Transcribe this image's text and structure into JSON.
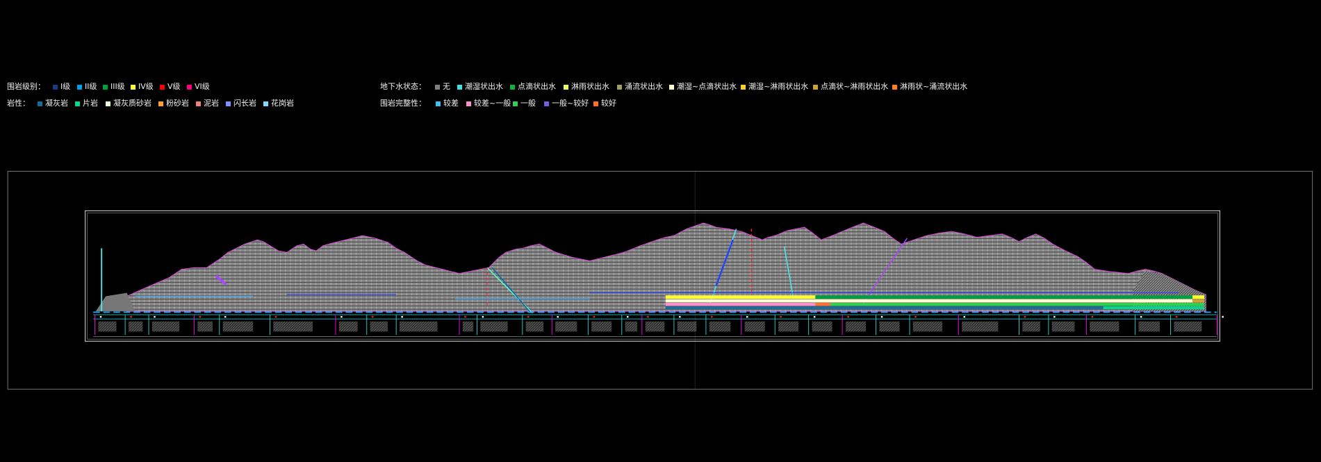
{
  "legend": {
    "grade": {
      "label": "围岩级别：",
      "items": [
        {
          "label": "I级",
          "color": "#1a3a8a"
        },
        {
          "label": "II级",
          "color": "#00a0e9"
        },
        {
          "label": "III级",
          "color": "#00a040"
        },
        {
          "label": "IV级",
          "color": "#ffff33"
        },
        {
          "label": "V级",
          "color": "#ff0000"
        },
        {
          "label": "VI级",
          "color": "#ff0080"
        }
      ]
    },
    "lithology": {
      "label": "岩性：",
      "items": [
        {
          "label": "凝灰岩",
          "color": "#1a6a9a"
        },
        {
          "label": "片岩",
          "color": "#00d890"
        },
        {
          "label": "凝灰质砂岩",
          "color": "#e8ffd8"
        },
        {
          "label": "粉砂岩",
          "color": "#ffa030"
        },
        {
          "label": "泥岩",
          "color": "#f08080"
        },
        {
          "label": "闪长岩",
          "color": "#8090ff"
        },
        {
          "label": "花岗岩",
          "color": "#80d8ff"
        }
      ]
    },
    "groundwater": {
      "label": "地下水状态：",
      "items": [
        {
          "label": "无",
          "color": "#808080"
        },
        {
          "label": "潮湿状出水",
          "color": "#40e0e0"
        },
        {
          "label": "点滴状出水",
          "color": "#10b040"
        },
        {
          "label": "淋雨状出水",
          "color": "#e8ff60"
        },
        {
          "label": "涌流状出水",
          "color": "#a0a060"
        },
        {
          "label": "潮湿~点滴状出水",
          "color": "#ffffd0"
        },
        {
          "label": "潮湿~淋雨状出水",
          "color": "#ffd020"
        },
        {
          "label": "点滴状~淋雨状出水",
          "color": "#d0a030"
        },
        {
          "label": "淋雨状~涌流状出水",
          "color": "#ff8020"
        }
      ]
    },
    "integrity": {
      "label": "围岩完整性：",
      "items": [
        {
          "label": "较差",
          "color": "#40c0f0"
        },
        {
          "label": "较差~一般",
          "color": "#ff90d0"
        },
        {
          "label": "一般",
          "color": "#30d050"
        },
        {
          "label": "一般~较好",
          "color": "#7060e0"
        },
        {
          "label": "较好",
          "color": "#ff7030"
        }
      ]
    }
  },
  "drawing": {
    "profile_fill": "#8a8a8a",
    "profile_outline": "#e040e0"
  }
}
